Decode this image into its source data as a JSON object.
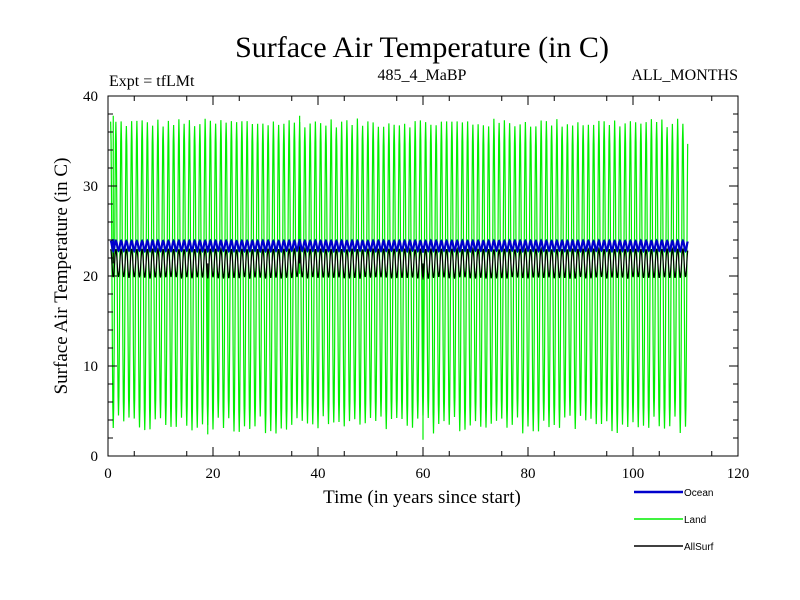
{
  "chart_data": {
    "type": "line",
    "title": "Surface Air Temperature (in C)",
    "header_left": "Expt = tfLMt",
    "header_center": "485_4_MaBP",
    "header_right": "ALL_MONTHS",
    "xlabel": "Time (in years since start)",
    "ylabel": "Surface Air Temperature (in C)",
    "xlim": [
      0,
      120
    ],
    "ylim": [
      0,
      40
    ],
    "xticks": [
      0,
      20,
      40,
      60,
      80,
      100,
      120
    ],
    "yticks": [
      0,
      10,
      20,
      30,
      40
    ],
    "x_range_data": [
      0.5,
      110.5
    ],
    "cycle_period_years": 1,
    "series": [
      {
        "name": "Land",
        "color": "#00ee00",
        "typical_min": 3.5,
        "typical_max": 37.0,
        "extreme_min": 1.8,
        "extreme_max": 37.8
      },
      {
        "name": "AllSurf",
        "color": "#000000",
        "typical_min": 19.8,
        "typical_max": 23.0,
        "extreme_min": 19.6,
        "extreme_max": 23.3
      },
      {
        "name": "Ocean",
        "color": "#0000cc",
        "typical_min": 22.8,
        "typical_max": 23.9,
        "extreme_min": 22.6,
        "extreme_max": 24.1
      }
    ],
    "legend": [
      {
        "label": "Ocean",
        "color": "#0000cc"
      },
      {
        "label": "Land",
        "color": "#00ee00"
      },
      {
        "label": "AllSurf",
        "color": "#000000"
      }
    ],
    "legend_position": "bottom-right"
  }
}
